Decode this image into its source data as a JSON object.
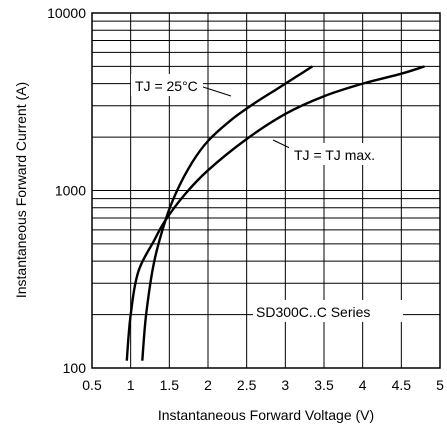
{
  "chart_data": {
    "type": "line",
    "xlabel": "Instantaneous Forward Voltage (V)",
    "ylabel": "Instantaneous Forward Current (A)",
    "xlim": [
      0.5,
      5
    ],
    "ylim": [
      100,
      10000
    ],
    "yscale": "log",
    "grid": true,
    "xticks": [
      0.5,
      1,
      1.5,
      2,
      2.5,
      3,
      3.5,
      4,
      4.5,
      5
    ],
    "xtick_labels": [
      "0.5",
      "1",
      "1.5",
      "2",
      "2.5",
      "3",
      "3.5",
      "4",
      "4.5",
      "5"
    ],
    "yticks": [
      100,
      1000,
      10000
    ],
    "ytick_labels": [
      "100",
      "1000",
      "10000"
    ],
    "series": [
      {
        "name": "TJ = 25°C",
        "points": [
          [
            1.15,
            110
          ],
          [
            1.2,
            200
          ],
          [
            1.3,
            390
          ],
          [
            1.45,
            680
          ],
          [
            1.6,
            1000
          ],
          [
            1.8,
            1450
          ],
          [
            2.0,
            1900
          ],
          [
            2.3,
            2500
          ],
          [
            2.6,
            3100
          ],
          [
            2.9,
            3750
          ],
          [
            3.15,
            4400
          ],
          [
            3.35,
            5000
          ]
        ]
      },
      {
        "name": "TJ = TJ max.",
        "points": [
          [
            0.95,
            110
          ],
          [
            1.0,
            200
          ],
          [
            1.1,
            350
          ],
          [
            1.3,
            520
          ],
          [
            1.45,
            680
          ],
          [
            1.7,
            950
          ],
          [
            2.0,
            1300
          ],
          [
            2.5,
            1950
          ],
          [
            3.0,
            2700
          ],
          [
            3.5,
            3400
          ],
          [
            4.0,
            4000
          ],
          [
            4.5,
            4550
          ],
          [
            4.8,
            5000
          ]
        ]
      }
    ],
    "annotations": [
      {
        "text": "TJ = 25°C",
        "series": 0
      },
      {
        "text": "TJ = TJ max.",
        "series": 1
      },
      {
        "text": "SD300C..C Series"
      }
    ]
  }
}
